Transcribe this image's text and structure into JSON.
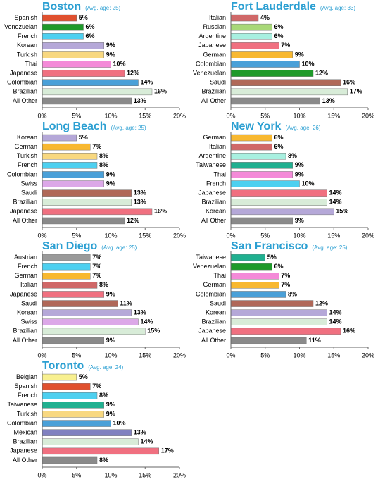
{
  "chart_data": [
    {
      "type": "bar",
      "title": "Boston",
      "subtitle": "(Avg. age: 25)",
      "categories": [
        "Spanish",
        "Venezuelan",
        "French",
        "Korean",
        "Turkish",
        "Thai",
        "Japanese",
        "Colombian",
        "Brazilian",
        "All Other"
      ],
      "values": [
        5,
        6,
        6,
        9,
        9,
        10,
        12,
        14,
        16,
        13
      ],
      "value_labels": [
        "5%",
        "6%",
        "6%",
        "9%",
        "9%",
        "10%",
        "12%",
        "14%",
        "16%",
        "13%"
      ],
      "colors": [
        "#e0502e",
        "#1e9a2a",
        "#4dd0f0",
        "#b5a8d8",
        "#f8d880",
        "#f48ad8",
        "#f07080",
        "#4aa0d8",
        "#d8ecd8",
        "#8a8a8a"
      ],
      "xlim": [
        0,
        20
      ],
      "xticks": [
        {
          "value": 0,
          "label": "0%"
        },
        {
          "value": 5,
          "label": "5%"
        },
        {
          "value": 10,
          "label": "10%"
        },
        {
          "value": 15,
          "label": "15%"
        },
        {
          "value": 20,
          "label": "20%"
        }
      ]
    },
    {
      "type": "bar",
      "title": "Fort Lauderdale",
      "subtitle": "(Avg. age: 33)",
      "categories": [
        "Italian",
        "Russian",
        "Argentine",
        "Japanese",
        "German",
        "Colombian",
        "Venezuelan",
        "Saudi",
        "Brazilian",
        "All Other"
      ],
      "values": [
        4,
        6,
        6,
        7,
        9,
        10,
        12,
        16,
        17,
        13
      ],
      "value_labels": [
        "4%",
        "6%",
        "6%",
        "7%",
        "9%",
        "10%",
        "12%",
        "16%",
        "17%",
        "13%"
      ],
      "colors": [
        "#d06868",
        "#a8d878",
        "#a8f0e0",
        "#f07080",
        "#f8b830",
        "#4aa0d8",
        "#1e9a2a",
        "#b06858",
        "#d8ecd8",
        "#8a8a8a"
      ],
      "xlim": [
        0,
        20
      ],
      "xticks": [
        {
          "value": 0,
          "label": "0%"
        },
        {
          "value": 5,
          "label": "5%"
        },
        {
          "value": 10,
          "label": "10%"
        },
        {
          "value": 15,
          "label": "15%"
        },
        {
          "value": 20,
          "label": "20%"
        }
      ]
    },
    {
      "type": "bar",
      "title": "Long Beach",
      "subtitle": "(Avg. age: 25)",
      "categories": [
        "Korean",
        "German",
        "Turkish",
        "French",
        "Colombian",
        "Swiss",
        "Saudi",
        "Brazilian",
        "Japanese",
        "All Other"
      ],
      "values": [
        5,
        7,
        8,
        8,
        9,
        9,
        13,
        13,
        16,
        12
      ],
      "value_labels": [
        "5%",
        "7%",
        "8%",
        "8%",
        "9%",
        "9%",
        "13%",
        "13%",
        "16%",
        "12%"
      ],
      "colors": [
        "#b5a8d8",
        "#f8b830",
        "#f8d880",
        "#4dd0f0",
        "#4aa0d8",
        "#dca8e8",
        "#b06858",
        "#d8ecd8",
        "#f07080",
        "#8a8a8a"
      ],
      "xlim": [
        0,
        20
      ],
      "xticks": [
        {
          "value": 0,
          "label": "0%"
        },
        {
          "value": 5,
          "label": "5%"
        },
        {
          "value": 10,
          "label": "10%"
        },
        {
          "value": 15,
          "label": "15%"
        },
        {
          "value": 20,
          "label": "20%"
        }
      ]
    },
    {
      "type": "bar",
      "title": "New York",
      "subtitle": "(Avg. age: 26)",
      "categories": [
        "German",
        "Italian",
        "Argentine",
        "Taiwanese",
        "Thai",
        "French",
        "Japanese",
        "Brazilian",
        "Korean",
        "All Other"
      ],
      "values": [
        6,
        6,
        8,
        9,
        9,
        10,
        14,
        14,
        15,
        9
      ],
      "value_labels": [
        "6%",
        "6%",
        "8%",
        "9%",
        "9%",
        "10%",
        "14%",
        "14%",
        "15%",
        "9%"
      ],
      "colors": [
        "#f8b830",
        "#d06868",
        "#a8f0e0",
        "#20b090",
        "#f48ad8",
        "#4dd0f0",
        "#f07080",
        "#d8ecd8",
        "#b5a8d8",
        "#8a8a8a"
      ],
      "xlim": [
        0,
        20
      ],
      "xticks": [
        {
          "value": 0,
          "label": "0%"
        },
        {
          "value": 5,
          "label": "5%"
        },
        {
          "value": 10,
          "label": "10%"
        },
        {
          "value": 15,
          "label": "15%"
        },
        {
          "value": 20,
          "label": "20%"
        }
      ]
    },
    {
      "type": "bar",
      "title": "San Diego",
      "subtitle": "(Avg. age: 25)",
      "categories": [
        "Austrian",
        "French",
        "German",
        "Italian",
        "Japanese",
        "Saudi",
        "Korean",
        "Swiss",
        "Brazilian",
        "All Other"
      ],
      "values": [
        7,
        7,
        7,
        8,
        9,
        11,
        13,
        14,
        15,
        9
      ],
      "value_labels": [
        "7%",
        "7%",
        "7%",
        "8%",
        "9%",
        "11%",
        "13%",
        "14%",
        "15%",
        "9%"
      ],
      "colors": [
        "#9a9a9a",
        "#4dd0f0",
        "#f8b830",
        "#d06868",
        "#f07080",
        "#b06858",
        "#b5a8d8",
        "#dca8e8",
        "#d8ecd8",
        "#8a8a8a"
      ],
      "xlim": [
        0,
        20
      ],
      "xticks": [
        {
          "value": 0,
          "label": "0%"
        },
        {
          "value": 5,
          "label": "5%"
        },
        {
          "value": 10,
          "label": "10%"
        },
        {
          "value": 15,
          "label": "15%"
        },
        {
          "value": 20,
          "label": "20%"
        }
      ]
    },
    {
      "type": "bar",
      "title": "San Francisco",
      "subtitle": "(Avg. age: 25)",
      "categories": [
        "Taiwanese",
        "Venezuelan",
        "Thai",
        "German",
        "Colombian",
        "Saudi",
        "Korean",
        "Brazilian",
        "Japanese",
        "All Other"
      ],
      "values": [
        5,
        6,
        7,
        7,
        8,
        12,
        14,
        14,
        16,
        11
      ],
      "value_labels": [
        "5%",
        "6%",
        "7%",
        "7%",
        "8%",
        "12%",
        "14%",
        "14%",
        "16%",
        "11%"
      ],
      "colors": [
        "#20b090",
        "#1e9a2a",
        "#f48ad8",
        "#f8b830",
        "#4aa0d8",
        "#b06858",
        "#b5a8d8",
        "#d8ecd8",
        "#f07080",
        "#8a8a8a"
      ],
      "xlim": [
        0,
        20
      ],
      "xticks": [
        {
          "value": 0,
          "label": "0%"
        },
        {
          "value": 5,
          "label": "5%"
        },
        {
          "value": 10,
          "label": "10%"
        },
        {
          "value": 15,
          "label": "15%"
        },
        {
          "value": 20,
          "label": "20%"
        }
      ]
    },
    {
      "type": "bar",
      "title": "Toronto",
      "subtitle": "(Avg. age: 24)",
      "categories": [
        "Belgian",
        "Spanish",
        "French",
        "Taiwanese",
        "Turkish",
        "Colombian",
        "Mexican",
        "Brazilian",
        "Japanese",
        "All Other"
      ],
      "values": [
        5,
        7,
        8,
        9,
        9,
        10,
        13,
        14,
        17,
        8
      ],
      "value_labels": [
        "5%",
        "7%",
        "8%",
        "9%",
        "9%",
        "10%",
        "13%",
        "14%",
        "17%",
        "8%"
      ],
      "colors": [
        "#f8f090",
        "#e0502e",
        "#4dd0f0",
        "#20b090",
        "#f8d880",
        "#4aa0d8",
        "#8080c0",
        "#d8ecd8",
        "#f07080",
        "#8a8a8a"
      ],
      "xlim": [
        0,
        20
      ],
      "xticks": [
        {
          "value": 0,
          "label": "0%"
        },
        {
          "value": 5,
          "label": "5%"
        },
        {
          "value": 10,
          "label": "10%"
        },
        {
          "value": 15,
          "label": "15%"
        },
        {
          "value": 20,
          "label": "20%"
        }
      ]
    }
  ]
}
